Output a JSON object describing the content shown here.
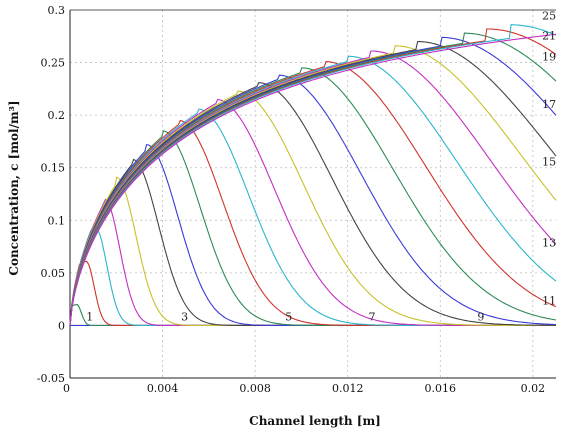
{
  "chart_data": {
    "type": "line",
    "xlabel": "Channel length [m]",
    "ylabel": "Concentration, c [mol/m³]",
    "xlim": [
      0,
      0.021
    ],
    "ylim": [
      -0.05,
      0.3
    ],
    "x_ticks": [
      "0",
      "0.004",
      "0.008",
      "0.012",
      "0.016",
      "0.02"
    ],
    "y_ticks": [
      "-0.05",
      "0",
      "0.05",
      "0.1",
      "0.15",
      "0.2",
      "0.25",
      "0.3"
    ],
    "grid": true,
    "curve_labels": [
      {
        "text": "1",
        "x": 0.0007,
        "y": 0.003
      },
      {
        "text": "3",
        "x": 0.0048,
        "y": 0.003
      },
      {
        "text": "5",
        "x": 0.0093,
        "y": 0.003
      },
      {
        "text": "7",
        "x": 0.0129,
        "y": 0.003
      },
      {
        "text": "9",
        "x": 0.0176,
        "y": 0.003
      },
      {
        "text": "11",
        "x": 0.0204,
        "y": 0.018
      },
      {
        "text": "13",
        "x": 0.0204,
        "y": 0.073
      },
      {
        "text": "15",
        "x": 0.0204,
        "y": 0.15
      },
      {
        "text": "17",
        "x": 0.0204,
        "y": 0.205
      },
      {
        "text": "19",
        "x": 0.0204,
        "y": 0.25
      },
      {
        "text": "21",
        "x": 0.0204,
        "y": 0.27
      },
      {
        "text": "25",
        "x": 0.0204,
        "y": 0.289
      }
    ],
    "series": [
      {
        "color": "#2e8b57",
        "peak_x": 0.0003,
        "peak_y": 0.02
      },
      {
        "color": "#d0342c",
        "peak_x": 0.0007,
        "peak_y": 0.061
      },
      {
        "color": "#2bb5c9",
        "peak_x": 0.0011,
        "peak_y": 0.093
      },
      {
        "color": "#c42fc4",
        "peak_x": 0.0015,
        "peak_y": 0.12
      },
      {
        "color": "#c9c12a",
        "peak_x": 0.002,
        "peak_y": 0.141
      },
      {
        "color": "#444444",
        "peak_x": 0.0027,
        "peak_y": 0.158
      },
      {
        "color": "#3b3bd6",
        "peak_x": 0.0033,
        "peak_y": 0.172
      },
      {
        "color": "#2e8b57",
        "peak_x": 0.004,
        "peak_y": 0.185
      },
      {
        "color": "#d0342c",
        "peak_x": 0.0047,
        "peak_y": 0.195
      },
      {
        "color": "#2bb5c9",
        "peak_x": 0.0055,
        "peak_y": 0.206
      },
      {
        "color": "#c42fc4",
        "peak_x": 0.0063,
        "peak_y": 0.215
      },
      {
        "color": "#c9c12a",
        "peak_x": 0.0072,
        "peak_y": 0.223
      },
      {
        "color": "#444444",
        "peak_x": 0.0081,
        "peak_y": 0.231
      },
      {
        "color": "#3b3bd6",
        "peak_x": 0.009,
        "peak_y": 0.238
      },
      {
        "color": "#2e8b57",
        "peak_x": 0.01,
        "peak_y": 0.245
      },
      {
        "color": "#d0342c",
        "peak_x": 0.011,
        "peak_y": 0.251
      },
      {
        "color": "#2bb5c9",
        "peak_x": 0.012,
        "peak_y": 0.256
      },
      {
        "color": "#c42fc4",
        "peak_x": 0.013,
        "peak_y": 0.261
      },
      {
        "color": "#c9c12a",
        "peak_x": 0.014,
        "peak_y": 0.266
      },
      {
        "color": "#444444",
        "peak_x": 0.015,
        "peak_y": 0.27
      },
      {
        "color": "#3b3bd6",
        "peak_x": 0.016,
        "peak_y": 0.274
      },
      {
        "color": "#2e8b57",
        "peak_x": 0.017,
        "peak_y": 0.278
      },
      {
        "color": "#d0342c",
        "peak_x": 0.018,
        "peak_y": 0.282
      },
      {
        "color": "#2bb5c9",
        "peak_x": 0.019,
        "peak_y": 0.286
      },
      {
        "color": "#c42fc4",
        "peak_x": 0.021,
        "peak_y": 0.29
      }
    ]
  }
}
